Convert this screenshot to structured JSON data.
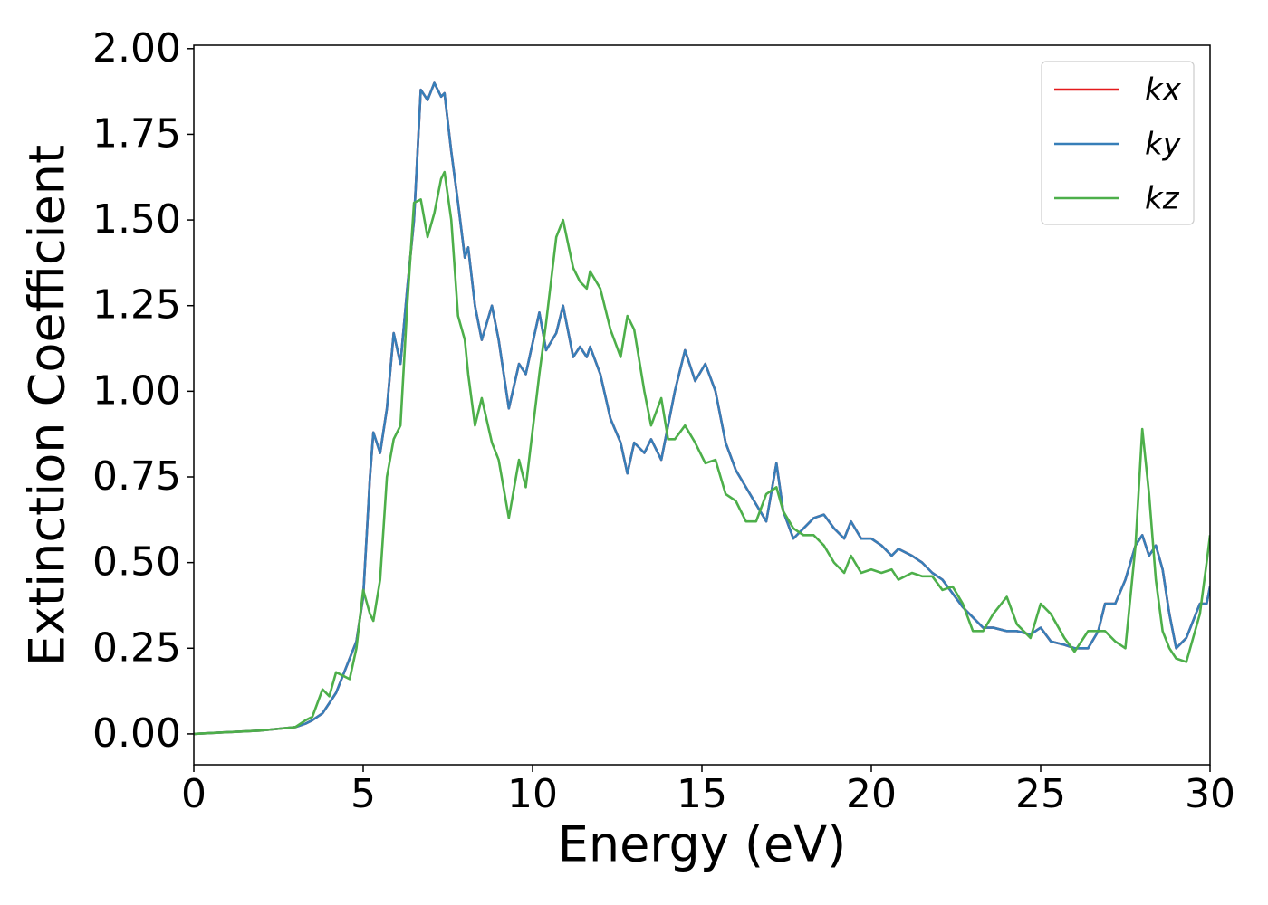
{
  "chart_data": {
    "type": "line",
    "xlabel": "Energy (eV)",
    "ylabel": "Extinction Coefficient",
    "x": [
      0,
      2,
      3,
      3.3,
      3.5,
      3.8,
      4.0,
      4.2,
      4.4,
      4.6,
      4.8,
      5.0,
      5.2,
      5.3,
      5.5,
      5.7,
      5.9,
      6.1,
      6.3,
      6.5,
      6.7,
      6.9,
      7.1,
      7.3,
      7.4,
      7.6,
      7.8,
      8.0,
      8.1,
      8.3,
      8.5,
      8.8,
      9.0,
      9.3,
      9.6,
      9.8,
      10.2,
      10.4,
      10.7,
      10.9,
      11.2,
      11.4,
      11.6,
      11.7,
      12.0,
      12.3,
      12.6,
      12.8,
      13.0,
      13.3,
      13.5,
      13.8,
      14.0,
      14.2,
      14.5,
      14.8,
      15.1,
      15.4,
      15.7,
      16.0,
      16.3,
      16.6,
      16.9,
      17.2,
      17.4,
      17.7,
      18.0,
      18.3,
      18.6,
      18.9,
      19.2,
      19.4,
      19.7,
      20,
      20.3,
      20.6,
      20.8,
      21.2,
      21.5,
      21.8,
      22.1,
      22.4,
      22.7,
      23.0,
      23.3,
      23.6,
      24,
      24.3,
      24.7,
      25,
      25.3,
      25.7,
      26,
      26.4,
      26.7,
      26.9,
      27.2,
      27.5,
      27.8,
      28.0,
      28.2,
      28.4,
      28.6,
      28.8,
      29.0,
      29.3,
      29.7,
      29.9,
      30
    ],
    "series": [
      {
        "name": "kx",
        "color": "#e41a1c",
        "values": [
          0,
          0.01,
          0.02,
          0.03,
          0.04,
          0.06,
          0.09,
          0.12,
          0.17,
          0.22,
          0.27,
          0.4,
          0.75,
          0.88,
          0.82,
          0.95,
          1.17,
          1.08,
          1.3,
          1.5,
          1.88,
          1.85,
          1.9,
          1.86,
          1.87,
          1.7,
          1.55,
          1.39,
          1.42,
          1.25,
          1.15,
          1.25,
          1.15,
          0.95,
          1.08,
          1.05,
          1.23,
          1.12,
          1.17,
          1.25,
          1.1,
          1.13,
          1.1,
          1.13,
          1.05,
          0.92,
          0.85,
          0.76,
          0.85,
          0.82,
          0.86,
          0.8,
          0.9,
          1.0,
          1.12,
          1.03,
          1.08,
          1.0,
          0.85,
          0.77,
          0.72,
          0.67,
          0.62,
          0.79,
          0.65,
          0.57,
          0.6,
          0.63,
          0.64,
          0.6,
          0.57,
          0.62,
          0.57,
          0.57,
          0.55,
          0.52,
          0.54,
          0.52,
          0.5,
          0.47,
          0.45,
          0.41,
          0.37,
          0.34,
          0.31,
          0.31,
          0.3,
          0.3,
          0.29,
          0.31,
          0.27,
          0.26,
          0.25,
          0.25,
          0.3,
          0.38,
          0.38,
          0.45,
          0.55,
          0.58,
          0.52,
          0.55,
          0.48,
          0.35,
          0.25,
          0.28,
          0.38,
          0.38,
          0.43
        ]
      },
      {
        "name": "ky",
        "color": "#377eb8",
        "values": [
          0,
          0.01,
          0.02,
          0.03,
          0.04,
          0.06,
          0.09,
          0.12,
          0.17,
          0.22,
          0.27,
          0.4,
          0.75,
          0.88,
          0.82,
          0.95,
          1.17,
          1.08,
          1.3,
          1.5,
          1.88,
          1.85,
          1.9,
          1.86,
          1.87,
          1.7,
          1.55,
          1.39,
          1.42,
          1.25,
          1.15,
          1.25,
          1.15,
          0.95,
          1.08,
          1.05,
          1.23,
          1.12,
          1.17,
          1.25,
          1.1,
          1.13,
          1.1,
          1.13,
          1.05,
          0.92,
          0.85,
          0.76,
          0.85,
          0.82,
          0.86,
          0.8,
          0.9,
          1.0,
          1.12,
          1.03,
          1.08,
          1.0,
          0.85,
          0.77,
          0.72,
          0.67,
          0.62,
          0.79,
          0.65,
          0.57,
          0.6,
          0.63,
          0.64,
          0.6,
          0.57,
          0.62,
          0.57,
          0.57,
          0.55,
          0.52,
          0.54,
          0.52,
          0.5,
          0.47,
          0.45,
          0.41,
          0.37,
          0.34,
          0.31,
          0.31,
          0.3,
          0.3,
          0.29,
          0.31,
          0.27,
          0.26,
          0.25,
          0.25,
          0.3,
          0.38,
          0.38,
          0.45,
          0.55,
          0.58,
          0.52,
          0.55,
          0.48,
          0.35,
          0.25,
          0.28,
          0.38,
          0.38,
          0.43
        ]
      },
      {
        "name": "kz",
        "color": "#4daf4a",
        "values": [
          0,
          0.01,
          0.02,
          0.04,
          0.05,
          0.13,
          0.11,
          0.18,
          0.17,
          0.16,
          0.25,
          0.42,
          0.35,
          0.33,
          0.45,
          0.75,
          0.86,
          0.9,
          1.25,
          1.55,
          1.56,
          1.45,
          1.52,
          1.62,
          1.64,
          1.5,
          1.22,
          1.15,
          1.05,
          0.9,
          0.98,
          0.85,
          0.8,
          0.63,
          0.8,
          0.72,
          1.05,
          1.2,
          1.45,
          1.5,
          1.36,
          1.32,
          1.3,
          1.35,
          1.3,
          1.18,
          1.1,
          1.22,
          1.18,
          1.0,
          0.9,
          0.98,
          0.86,
          0.86,
          0.9,
          0.85,
          0.79,
          0.8,
          0.7,
          0.68,
          0.62,
          0.62,
          0.7,
          0.72,
          0.65,
          0.6,
          0.58,
          0.58,
          0.55,
          0.5,
          0.47,
          0.52,
          0.47,
          0.48,
          0.47,
          0.48,
          0.45,
          0.47,
          0.46,
          0.46,
          0.42,
          0.43,
          0.38,
          0.3,
          0.3,
          0.35,
          0.4,
          0.32,
          0.28,
          0.38,
          0.35,
          0.28,
          0.24,
          0.3,
          0.3,
          0.3,
          0.27,
          0.25,
          0.55,
          0.89,
          0.7,
          0.45,
          0.3,
          0.25,
          0.22,
          0.21,
          0.35,
          0.5,
          0.58
        ]
      }
    ],
    "xlim": [
      0,
      30
    ],
    "xticks": [
      0,
      5,
      10,
      15,
      20,
      25,
      30
    ],
    "ylim": [
      -0.09,
      2.01
    ],
    "yticks": [
      {
        "value": 0,
        "label": "0.00"
      },
      {
        "value": 0.25,
        "label": "0.25"
      },
      {
        "value": 0.5,
        "label": "0.50"
      },
      {
        "value": 0.75,
        "label": "0.75"
      },
      {
        "value": 1,
        "label": "1.00"
      },
      {
        "value": 1.25,
        "label": "1.25"
      },
      {
        "value": 1.5,
        "label": "1.50"
      },
      {
        "value": 1.75,
        "label": "1.75"
      },
      {
        "value": 2,
        "label": "2.00"
      }
    ],
    "grid": false,
    "legend": "upper right"
  }
}
